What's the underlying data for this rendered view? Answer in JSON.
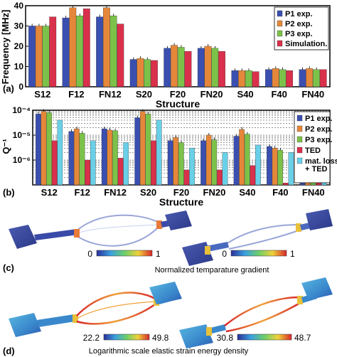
{
  "chart_data": [
    {
      "panel_label": "(a)",
      "type": "bar",
      "xlabel": "Structure",
      "ylabel": "Frequency [MHz]",
      "ylim": [
        0,
        40
      ],
      "y_ticks": [
        "0",
        "10",
        "20",
        "30",
        "40"
      ],
      "grid": false,
      "legend_position": "top-right",
      "categories": [
        "S12",
        "F12",
        "FN12",
        "S20",
        "F20",
        "FN20",
        "S40",
        "F40",
        "FN40"
      ],
      "series": [
        {
          "name": "P1 exp.",
          "color": "#3a4fb0",
          "values": [
            30,
            34,
            34.5,
            13.5,
            19,
            19,
            8,
            8.5,
            8.5
          ]
        },
        {
          "name": "P2 exp.",
          "color": "#e5873a",
          "values": [
            30,
            39,
            39,
            14,
            20.5,
            20,
            8,
            9,
            9
          ]
        },
        {
          "name": "P3 exp.",
          "color": "#7cc24a",
          "values": [
            30,
            35,
            35,
            13.5,
            19.5,
            19,
            8,
            8.5,
            8.5
          ]
        },
        {
          "name": "Simulation.",
          "color": "#d9304b",
          "values": [
            34.5,
            38.5,
            31,
            13,
            17.5,
            17.5,
            7.5,
            8,
            8.5
          ]
        }
      ]
    },
    {
      "panel_label": "(b)",
      "type": "bar",
      "scale": "log",
      "xlabel": "Structure",
      "ylabel": "Q⁻¹",
      "ylim": [
        1e-07,
        0.0001
      ],
      "y_ticks": [
        "10⁻⁶",
        "10⁻⁵",
        "10⁻⁴"
      ],
      "grid": true,
      "legend_position": "right",
      "categories": [
        "S12",
        "F12",
        "FN12",
        "S20",
        "F20",
        "FN20",
        "S40",
        "F40",
        "FN40"
      ],
      "series": [
        {
          "name": "P1 exp.",
          "color": "#3a4fb0",
          "values": [
            7e-05,
            1.4e-05,
            1.8e-05,
            5e-05,
            6e-06,
            6e-06,
            9e-06,
            3.5e-06,
            3e-06
          ]
        },
        {
          "name": "P2 exp.",
          "color": "#e5873a",
          "values": [
            9e-05,
            1.8e-05,
            1.6e-05,
            9e-05,
            8e-06,
            1e-05,
            1.7e-05,
            3e-06,
            3.8e-06
          ]
        },
        {
          "name": "P3 exp.",
          "color": "#7cc24a",
          "values": [
            8e-05,
            1.2e-05,
            1.5e-05,
            7e-05,
            5e-06,
            6.5e-06,
            1.1e-05,
            2.5e-06,
            2.6e-06
          ]
        },
        {
          "name": "TED",
          "color": "#d9304b",
          "values": [
            6e-06,
            1e-06,
            1.2e-06,
            6e-06,
            4e-07,
            4e-07,
            6e-07,
            1.2e-07,
            1.2e-07
          ]
        },
        {
          "name": "mat. loss + TED",
          "color": "#6ad0e8",
          "values": [
            4e-05,
            6e-06,
            5e-06,
            4e-05,
            3e-06,
            2e-06,
            4e-06,
            2e-06,
            1.7e-06
          ]
        }
      ]
    }
  ],
  "panel_c": {
    "label": "(c)",
    "caption": "Normalized temparature gradient",
    "scale_left": {
      "min": "0",
      "max": "1"
    },
    "scale_right": {
      "min": "0",
      "max": "1"
    }
  },
  "panel_d": {
    "label": "(d)",
    "caption": "Logarithmic scale elastic strain energy density",
    "scale_left": {
      "min": "22.2",
      "max": "49.8"
    },
    "scale_right": {
      "min": "30.8",
      "max": "48.7"
    }
  }
}
